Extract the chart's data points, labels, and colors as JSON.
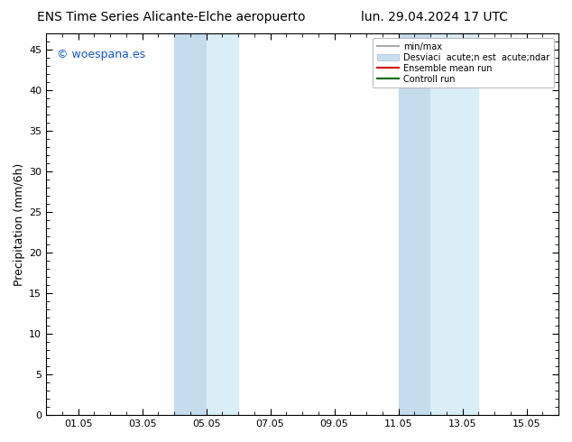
{
  "title_left": "ENS Time Series Alicante-Elche aeropuerto",
  "title_right": "lun. 29.04.2024 17 UTC",
  "ylabel": "Precipitation (mm/6h)",
  "xlim": [
    0.0,
    16.0
  ],
  "ylim": [
    0,
    47
  ],
  "yticks": [
    0,
    5,
    10,
    15,
    20,
    25,
    30,
    35,
    40,
    45
  ],
  "xtick_labels": [
    "01.05",
    "03.05",
    "05.05",
    "07.05",
    "09.05",
    "11.05",
    "13.05",
    "15.05"
  ],
  "xtick_positions": [
    1.0,
    3.0,
    5.0,
    7.0,
    9.0,
    11.0,
    13.0,
    15.0
  ],
  "shaded_block1_x1": 4.0,
  "shaded_block1_mid": 5.0,
  "shaded_block1_x2": 6.0,
  "shaded_block2_x1": 11.0,
  "shaded_block2_mid": 12.0,
  "shaded_block2_x2": 13.5,
  "shade_dark": "#c5dced",
  "shade_light": "#daeef8",
  "watermark_text": "© woespana.es",
  "watermark_color": "#1155cc",
  "legend_label1": "min/max",
  "legend_label2": "Desviaci  acute;n est  acute;ndar",
  "legend_label3": "Ensemble mean run",
  "legend_label4": "Controll run",
  "legend_color1": "#aaaaaa",
  "legend_color2": "#c8dff0",
  "legend_color3": "#dd0000",
  "legend_color4": "#006600",
  "bg_color": "#ffffff",
  "tick_color": "#000000",
  "title_fontsize": 10,
  "ylabel_fontsize": 9,
  "figwidth": 6.34,
  "figheight": 4.9,
  "dpi": 100
}
